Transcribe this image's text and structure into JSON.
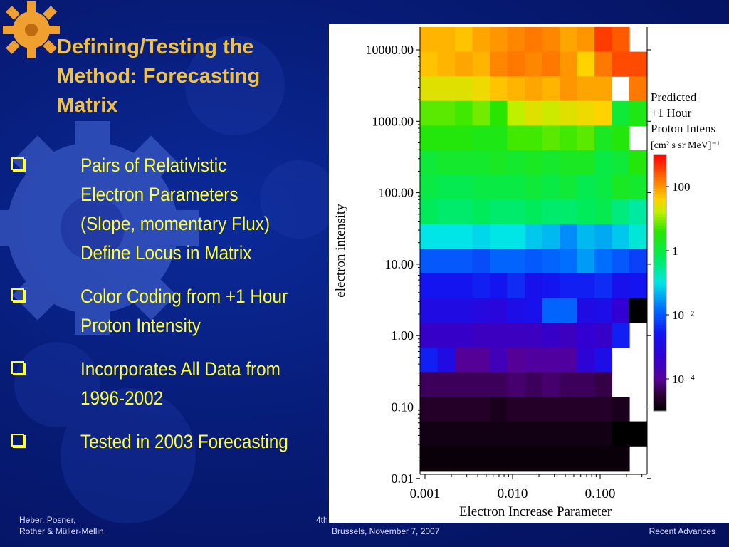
{
  "slide": {
    "title_lines": [
      "Defining/Testing the",
      "Method: Forecasting",
      "Matrix"
    ],
    "bullets": [
      {
        "lines": [
          "Pairs of Relativistic",
          "Electron Parameters",
          "(Slope, momentary Flux)",
          "Define Locus in Matrix"
        ]
      },
      {
        "lines": [
          "Color Coding from +1 Hour",
          "Proton Intensity"
        ]
      },
      {
        "lines": [
          "Incorporates All Data from",
          "1996-2002"
        ]
      },
      {
        "lines": [
          "Tested in 2003 Forecasting"
        ]
      }
    ],
    "footer": {
      "authors_line1": "Heber, Posner,",
      "authors_line2": "Rother & Müller-Mellin",
      "event_line1": "4th",
      "event_line2": "Brussels, November 7, 2007",
      "right_line2": "Recent Advances"
    },
    "colors": {
      "title": "#f0c040",
      "bullet_text": "#ffff33",
      "background": "#071c78",
      "gear": "#f0a030"
    }
  },
  "chart_data": {
    "type": "heatmap",
    "xlabel": "Electron Increase Parameter",
    "ylabel": "electron intensity",
    "x_tick_labels": [
      "0.001",
      "0.010",
      "0.100"
    ],
    "y_tick_labels": [
      "10000.00",
      "1000.00",
      "100.00",
      "10.00",
      "1.00",
      "0.10",
      "0.01"
    ],
    "x_scale": "log",
    "y_scale": "log",
    "colorbar": {
      "title_lines": [
        "Predicted",
        "+1 Hour",
        "Proton Intens"
      ],
      "units": "[cm² s sr MeV]⁻¹",
      "tick_labels": [
        "100",
        "1",
        "10⁻²",
        "10⁻⁴"
      ],
      "tick_log_values": [
        2,
        0,
        -2,
        -4
      ],
      "range_log": [
        -5,
        3
      ]
    },
    "cols": 13,
    "rows": 18,
    "cell_log_intensity": [
      [
        1.8,
        1.8,
        1.7,
        1.9,
        2.0,
        2.1,
        2.2,
        2.1,
        1.9,
        2.0,
        2.6,
        2.4,
        null
      ],
      [
        1.7,
        1.8,
        1.9,
        1.8,
        2.1,
        2.2,
        2.1,
        2.2,
        2.0,
        1.6,
        2.2,
        2.5,
        2.5
      ],
      [
        1.4,
        1.4,
        1.4,
        1.5,
        1.7,
        1.8,
        1.9,
        1.8,
        2.0,
        1.9,
        1.9,
        null,
        2.2
      ],
      [
        0.8,
        0.8,
        0.7,
        0.9,
        0.6,
        1.2,
        1.4,
        1.3,
        1.4,
        1.5,
        1.6,
        0.1,
        0.4
      ],
      [
        0.5,
        0.5,
        0.5,
        0.4,
        0.4,
        0.7,
        0.7,
        0.8,
        0.7,
        0.8,
        0.3,
        0.5,
        null
      ],
      [
        0.1,
        0.2,
        0.2,
        0.2,
        0.3,
        0.2,
        0.3,
        0.2,
        0.3,
        0.3,
        0.0,
        0.1,
        0.5
      ],
      [
        0.0,
        -0.1,
        -0.1,
        0.0,
        0.0,
        0.0,
        0.1,
        0.0,
        0.1,
        -0.1,
        0.0,
        0.3,
        0.2
      ],
      [
        -0.2,
        -0.3,
        -0.3,
        -0.2,
        -0.3,
        -0.3,
        -0.2,
        -0.3,
        -0.3,
        -0.2,
        -0.1,
        -0.4,
        -0.6
      ],
      [
        -1.0,
        -1.0,
        -1.0,
        -1.1,
        -1.0,
        -1.0,
        -1.2,
        -1.3,
        -1.6,
        -1.3,
        -1.4,
        -1.2,
        -0.9
      ],
      [
        -2.0,
        -2.0,
        -2.0,
        -2.1,
        -1.9,
        -1.9,
        -2.0,
        -1.9,
        -1.8,
        -1.5,
        -1.8,
        -2.0,
        -2.2
      ],
      [
        -2.6,
        -2.6,
        -2.6,
        -2.5,
        -2.6,
        -2.4,
        -2.7,
        -2.6,
        -2.5,
        -2.5,
        -2.4,
        -2.7,
        -2.6
      ],
      [
        -2.9,
        -2.9,
        -2.9,
        -3.0,
        -3.1,
        -2.8,
        -2.7,
        -1.9,
        -1.9,
        -2.9,
        -2.8,
        -3.3,
        -5.0
      ],
      [
        -3.4,
        -3.4,
        -3.4,
        -3.5,
        -3.5,
        -3.5,
        -3.5,
        -3.4,
        -3.5,
        -3.3,
        -3.4,
        -2.5,
        null
      ],
      [
        -2.5,
        -2.9,
        -4.0,
        -4.0,
        -3.6,
        -4.0,
        -3.9,
        -3.9,
        -3.9,
        -3.2,
        -2.8,
        null,
        null
      ],
      [
        -4.3,
        -4.3,
        -4.3,
        -4.3,
        -4.3,
        -4.2,
        -4.3,
        -4.2,
        -4.3,
        -4.3,
        -4.4,
        null,
        null
      ],
      [
        -4.6,
        -4.6,
        -4.6,
        -4.6,
        -4.7,
        -4.6,
        -4.6,
        -4.6,
        -4.6,
        -4.6,
        -4.6,
        -4.7,
        null
      ],
      [
        -4.8,
        -4.8,
        -4.8,
        -4.8,
        -4.8,
        -4.8,
        -4.8,
        -4.8,
        -4.8,
        -4.8,
        -4.8,
        -5.0,
        -5.0
      ],
      [
        -4.9,
        -4.9,
        -4.9,
        -4.9,
        -4.9,
        -4.9,
        -4.9,
        -4.9,
        -4.9,
        -4.9,
        -4.9,
        -4.9,
        null
      ]
    ]
  }
}
